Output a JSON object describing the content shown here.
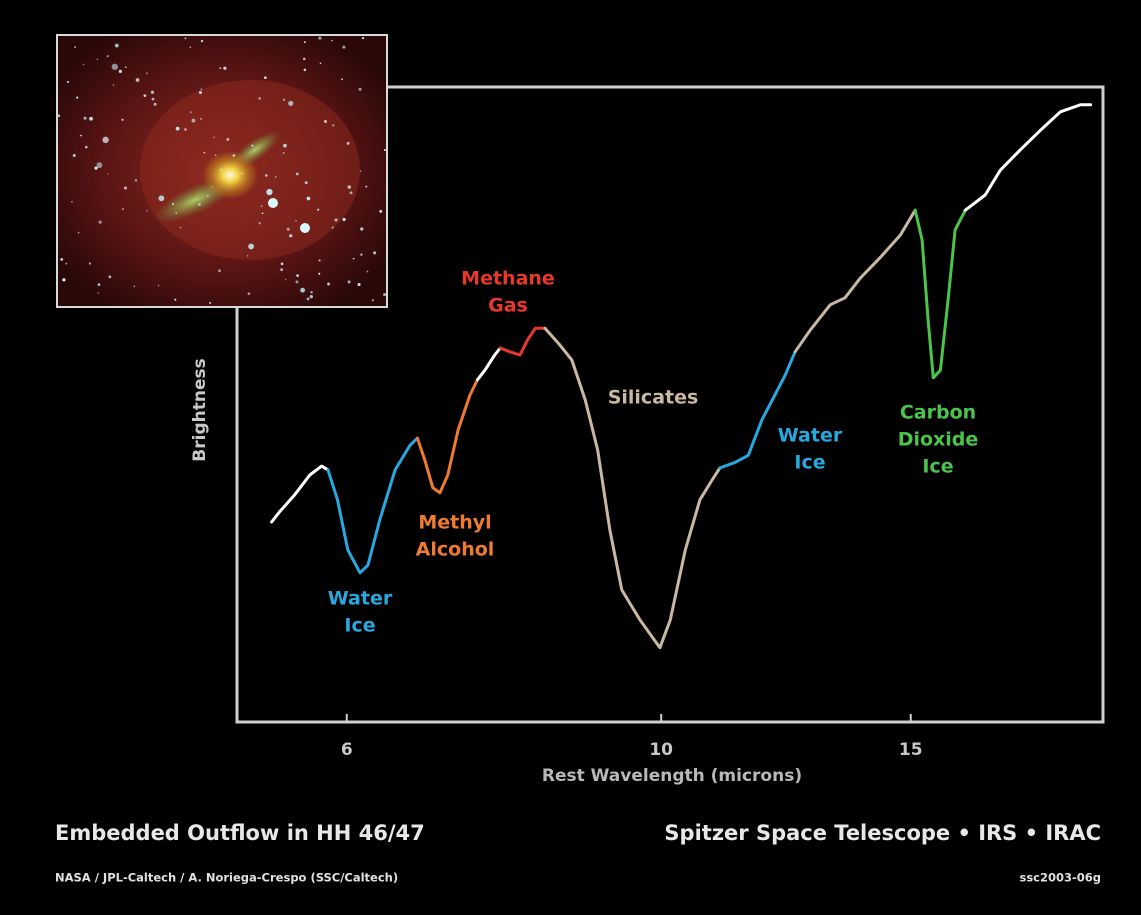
{
  "chart_data": {
    "type": "line",
    "title": "Embedded Outflow in HH 46/47",
    "subtitle": "Spitzer Space Telescope • IRS • IRAC",
    "credit": "NASA / JPL-Caltech / A. Noriega-Crespo (SSC/Caltech)",
    "image_id": "ssc2003-06g",
    "xlabel": "Rest Wavelength (microns)",
    "ylabel": "Brightness",
    "xscale": "log",
    "xlim": [
      5.02,
      20.5
    ],
    "xticks": [
      6,
      10,
      15
    ],
    "ylim": [
      0,
      100
    ],
    "series": [
      {
        "color": "#ffffff",
        "x": [
          5.31,
          5.38,
          5.51,
          5.65,
          5.76,
          5.82
        ],
        "values": [
          31.5,
          33.1,
          35.7,
          38.9,
          40.3,
          39.7
        ]
      },
      {
        "color": "#29a8e0",
        "x": [
          5.82,
          5.91,
          6.01,
          6.13,
          6.21,
          6.33,
          6.49,
          6.65,
          6.73
        ],
        "values": [
          39.7,
          35.0,
          27.1,
          23.5,
          24.7,
          31.8,
          39.7,
          43.6,
          44.7
        ]
      },
      {
        "color": "#f07a30",
        "x": [
          6.73,
          6.81,
          6.9,
          6.98,
          7.07,
          7.19,
          7.33,
          7.42
        ],
        "values": [
          44.7,
          41.3,
          36.9,
          36.1,
          38.9,
          46.0,
          51.5,
          53.9
        ]
      },
      {
        "color": "#ffffff",
        "x": [
          7.42,
          7.51,
          7.63,
          7.7
        ],
        "values": [
          53.9,
          55.4,
          57.8,
          58.9
        ]
      },
      {
        "color": "#e8382a",
        "x": [
          7.7,
          7.82,
          7.95,
          8.05,
          8.15,
          8.28
        ],
        "values": [
          58.9,
          58.3,
          57.8,
          60.2,
          62.0,
          62.0
        ]
      },
      {
        "color": "#c9b9a3",
        "x": [
          8.28,
          8.48,
          8.65,
          8.84,
          9.02,
          9.2,
          9.38,
          9.66,
          9.98,
          10.15,
          10.4,
          10.65,
          10.86,
          11.0
        ],
        "values": [
          62.0,
          59.4,
          57.0,
          50.7,
          42.8,
          30.2,
          20.8,
          16.1,
          11.7,
          16.1,
          27.1,
          35.0,
          38.1,
          40.0
        ]
      },
      {
        "color": "#29a8e0",
        "x": [
          11.0,
          11.28,
          11.52,
          11.78,
          12.03,
          12.23,
          12.43
        ],
        "values": [
          40.0,
          40.9,
          42.0,
          47.6,
          51.5,
          54.6,
          58.3
        ]
      },
      {
        "color": "#c9b9a3",
        "x": [
          12.43,
          12.74,
          13.16,
          13.48,
          13.82,
          14.27,
          14.75,
          15.11
        ],
        "values": [
          58.3,
          61.7,
          65.7,
          66.8,
          69.9,
          73.1,
          76.7,
          80.6
        ]
      },
      {
        "color": "#4cc44c",
        "x": [
          15.11,
          15.28,
          15.43,
          15.56,
          15.74,
          15.94,
          16.12,
          16.39
        ],
        "values": [
          80.6,
          75.9,
          63.3,
          54.2,
          55.4,
          66.5,
          77.5,
          80.6
        ]
      },
      {
        "color": "#ffffff",
        "x": [
          16.39,
          16.93,
          17.35,
          17.92,
          18.52,
          19.13,
          19.76,
          20.09
        ],
        "values": [
          80.6,
          83.0,
          86.9,
          90.1,
          93.2,
          96.1,
          97.2,
          97.2
        ]
      }
    ],
    "annotations": [
      {
        "lines": [
          "Water",
          "Ice"
        ],
        "color": "#29a8e0"
      },
      {
        "lines": [
          "Methyl",
          "Alcohol"
        ],
        "color": "#f07a30"
      },
      {
        "lines": [
          "Methane",
          "Gas"
        ],
        "color": "#e8382a"
      },
      {
        "lines": [
          "Silicates"
        ],
        "color": "#c9b9a3"
      },
      {
        "lines": [
          "Water",
          "Ice"
        ],
        "color": "#29a8e0"
      },
      {
        "lines": [
          "Carbon",
          "Dioxide",
          "Ice"
        ],
        "color": "#4cc44c"
      }
    ]
  }
}
